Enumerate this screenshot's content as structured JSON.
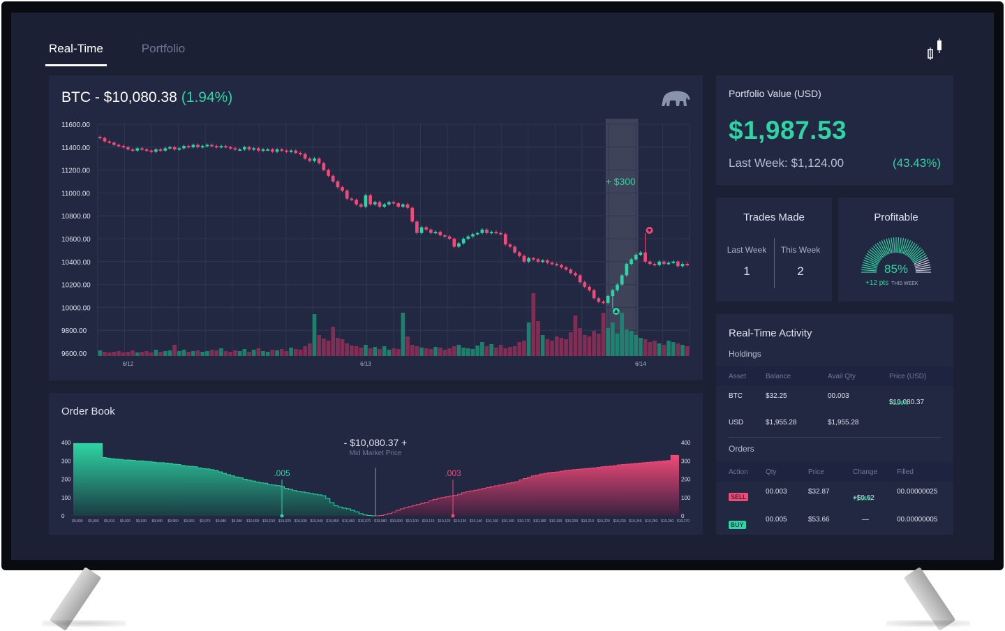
{
  "tabs": [
    {
      "label": "Real-Time",
      "active": true
    },
    {
      "label": "Portfolio",
      "active": false
    }
  ],
  "colors": {
    "up": "#2ed4a3",
    "down": "#f04a78",
    "panel": "#222842",
    "background": "#1b2035"
  },
  "chart_data": [
    {
      "type": "candlestick",
      "title": "BTC - $10,080.38",
      "title_change": "(1.94%)",
      "y_ticks": [
        "11600.00",
        "11400.00",
        "11200.00",
        "11000.00",
        "10800.00",
        "10600.00",
        "10400.00",
        "10200.00",
        "10000.00",
        "9800.00",
        "9600.00"
      ],
      "ylim": [
        9600,
        11600
      ],
      "x_ticks": [
        {
          "label": "6/12",
          "index": 6
        },
        {
          "label": "6/13",
          "index": 57
        },
        {
          "label": "6/14",
          "index": 116
        }
      ],
      "annotation": "+ $300",
      "highlight_range": [
        109,
        116
      ],
      "buy_marker_index": 110,
      "sell_marker_index": 117,
      "grid": true,
      "close": [
        11480,
        11450,
        11440,
        11420,
        11410,
        11400,
        11380,
        11370,
        11390,
        11380,
        11370,
        11360,
        11380,
        11370,
        11390,
        11400,
        11380,
        11390,
        11410,
        11400,
        11420,
        11400,
        11410,
        11420,
        11410,
        11400,
        11410,
        11400,
        11390,
        11380,
        11380,
        11400,
        11380,
        11390,
        11370,
        11380,
        11380,
        11360,
        11380,
        11370,
        11360,
        11370,
        11350,
        11340,
        11300,
        11280,
        11300,
        11260,
        11200,
        11150,
        11100,
        11050,
        11020,
        10950,
        10940,
        10900,
        10880,
        10980,
        10900,
        10920,
        10880,
        10900,
        10920,
        10910,
        10880,
        10900,
        10870,
        10750,
        10650,
        10700,
        10680,
        10650,
        10660,
        10630,
        10620,
        10600,
        10530,
        10560,
        10600,
        10620,
        10640,
        10650,
        10680,
        10650,
        10660,
        10650,
        10640,
        10550,
        10530,
        10480,
        10450,
        10400,
        10430,
        10420,
        10400,
        10410,
        10390,
        10380,
        10370,
        10350,
        10330,
        10300,
        10280,
        10220,
        10180,
        10150,
        10080,
        10050,
        10040,
        10100,
        10150,
        10200,
        10280,
        10380,
        10420,
        10460,
        10480,
        10400,
        10380,
        10370,
        10400,
        10380,
        10390,
        10400,
        10360,
        10380,
        10370
      ],
      "volume": [
        8,
        6,
        5,
        6,
        7,
        5,
        6,
        8,
        5,
        6,
        7,
        5,
        9,
        6,
        7,
        8,
        16,
        7,
        9,
        6,
        7,
        8,
        6,
        7,
        9,
        8,
        11,
        7,
        6,
        8,
        7,
        10,
        6,
        9,
        11,
        7,
        6,
        9,
        8,
        10,
        7,
        12,
        10,
        9,
        14,
        18,
        60,
        30,
        25,
        22,
        42,
        26,
        24,
        18,
        15,
        14,
        12,
        16,
        11,
        13,
        10,
        14,
        9,
        11,
        10,
        62,
        28,
        16,
        14,
        12,
        11,
        10,
        13,
        12,
        9,
        11,
        14,
        16,
        12,
        11,
        10,
        15,
        20,
        14,
        17,
        12,
        16,
        11,
        13,
        14,
        20,
        22,
        48,
        90,
        50,
        30,
        24,
        22,
        28,
        26,
        24,
        34,
        58,
        40,
        30,
        28,
        36,
        32,
        62,
        40,
        48,
        32,
        62,
        38,
        36,
        30,
        26,
        24,
        20,
        22,
        18,
        16,
        22,
        20,
        18,
        16,
        14
      ]
    },
    {
      "type": "area",
      "title": "Order Book",
      "mid_price": "- $10,080.37 +",
      "mid_caption": "Mid Market Price",
      "y_ticks": [
        "400",
        "300",
        "200",
        "100",
        "0"
      ],
      "ylim": [
        0,
        400
      ],
      "bid_marker_label": ".005",
      "ask_marker_label": ".003",
      "x_labels": [
        "$9,890",
        "$9,900",
        "$9,910",
        "$9,920",
        "$9,930",
        "$9,940",
        "$9,950",
        "$9,960",
        "$9,970",
        "$9,980",
        "$9,990",
        "$10,000",
        "$10,010",
        "$10,020",
        "$10,030",
        "$10,040",
        "$10,050",
        "$10,060",
        "$10,070",
        "$10,080",
        "$10,090",
        "$10,100",
        "$10,110",
        "$10,120",
        "$10,130",
        "$10,140",
        "$10,150",
        "$10,160",
        "$10,170",
        "$10,180",
        "$10,190",
        "$10,200",
        "$10,210",
        "$10,220",
        "$10,230",
        "$10,240",
        "$10,250",
        "$10,260",
        "$10,270"
      ],
      "bids": [
        395,
        395,
        395,
        395,
        395,
        395,
        395,
        318,
        315,
        312,
        310,
        308,
        305,
        305,
        303,
        300,
        300,
        298,
        296,
        293,
        290,
        290,
        288,
        286,
        282,
        280,
        275,
        272,
        270,
        268,
        262,
        258,
        256,
        252,
        248,
        240,
        232,
        225,
        218,
        212,
        208,
        200,
        195,
        190,
        185,
        180,
        178,
        170,
        168,
        165,
        160,
        150,
        145,
        138,
        132,
        130,
        126,
        122,
        118,
        115,
        110,
        95,
        72,
        55,
        48,
        42,
        38,
        30,
        22,
        12,
        5,
        2,
        0
      ],
      "asks": [
        0,
        2,
        6,
        12,
        20,
        30,
        38,
        44,
        50,
        56,
        62,
        68,
        74,
        82,
        90,
        96,
        100,
        104,
        108,
        112,
        118,
        126,
        132,
        136,
        140,
        145,
        150,
        155,
        160,
        164,
        168,
        172,
        178,
        182,
        186,
        196,
        204,
        210,
        218,
        222,
        228,
        232,
        236,
        238,
        240,
        244,
        248,
        250,
        252,
        254,
        256,
        258,
        260,
        262,
        265,
        268,
        270,
        272,
        274,
        278,
        280,
        282,
        284,
        286,
        288,
        290,
        292,
        294,
        296,
        298,
        300,
        302,
        330,
        330
      ]
    }
  ],
  "portfolio": {
    "label": "Portfolio Value (USD)",
    "value": "$1,987.53",
    "last_week": "Last Week: $1,124.00",
    "change": "(43.43%)"
  },
  "trades": {
    "title": "Trades Made",
    "last_week_label": "Last Week",
    "last_week_value": "1",
    "this_week_label": "This Week",
    "this_week_value": "2"
  },
  "profitable": {
    "title": "Profitable",
    "percent": "85%",
    "percent_value": 85,
    "pts": "+12 pts",
    "pts_caption": "THIS WEEK"
  },
  "activity": {
    "title": "Real-Time Activity",
    "holdings_label": "Holdings",
    "holdings_headers": [
      "Asset",
      "Balance",
      "Avail Qty",
      "Price (USD)"
    ],
    "holdings": [
      {
        "asset": "BTC",
        "balance": "$32.25",
        "qty": "00.003",
        "price": "$10,080.37",
        "price_change": "+1.94%"
      },
      {
        "asset": "USD",
        "balance": "$1,955.28",
        "qty": "$1,955.28",
        "price": "",
        "price_change": ""
      }
    ],
    "orders_label": "Orders",
    "orders_headers": [
      "Action",
      "Qty",
      "Price",
      "Change",
      "Filled"
    ],
    "orders": [
      {
        "action": "SELL",
        "qty": "00.003",
        "price": "$32.87",
        "change": "+$0.62",
        "change_pct": "+1.94%",
        "filled": "00.00000025"
      },
      {
        "action": "BUY",
        "qty": "00.005",
        "price": "$53.66",
        "change": "—",
        "change_pct": "",
        "filled": "00.00000005"
      }
    ]
  }
}
